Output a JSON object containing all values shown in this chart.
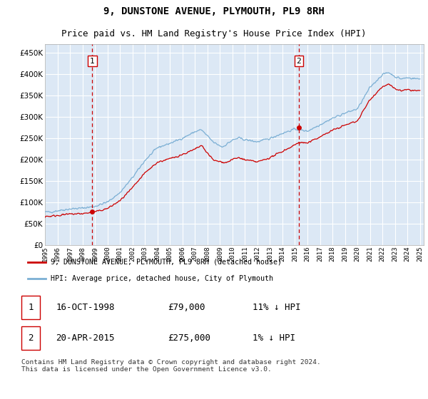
{
  "title": "9, DUNSTONE AVENUE, PLYMOUTH, PL9 8RH",
  "subtitle": "Price paid vs. HM Land Registry's House Price Index (HPI)",
  "legend_line1": "9, DUNSTONE AVENUE, PLYMOUTH, PL9 8RH (detached house)",
  "legend_line2": "HPI: Average price, detached house, City of Plymouth",
  "annotation1_label": "1",
  "annotation1_date": "16-OCT-1998",
  "annotation1_price": "£79,000",
  "annotation1_hpi": "11% ↓ HPI",
  "annotation1_year": 1998.79,
  "annotation1_value": 79000,
  "annotation2_label": "2",
  "annotation2_date": "20-APR-2015",
  "annotation2_price": "£275,000",
  "annotation2_hpi": "1% ↓ HPI",
  "annotation2_year": 2015.3,
  "annotation2_value": 275000,
  "footer": "Contains HM Land Registry data © Crown copyright and database right 2024.\nThis data is licensed under the Open Government Licence v3.0.",
  "ylim": [
    0,
    470000
  ],
  "yticks": [
    0,
    50000,
    100000,
    150000,
    200000,
    250000,
    300000,
    350000,
    400000,
    450000
  ],
  "plot_bg_color": "#dce8f5",
  "hpi_color": "#7bafd4",
  "price_color": "#cc0000",
  "grid_color": "#ffffff",
  "dashed_color": "#cc0000",
  "title_fontsize": 10,
  "subtitle_fontsize": 9
}
